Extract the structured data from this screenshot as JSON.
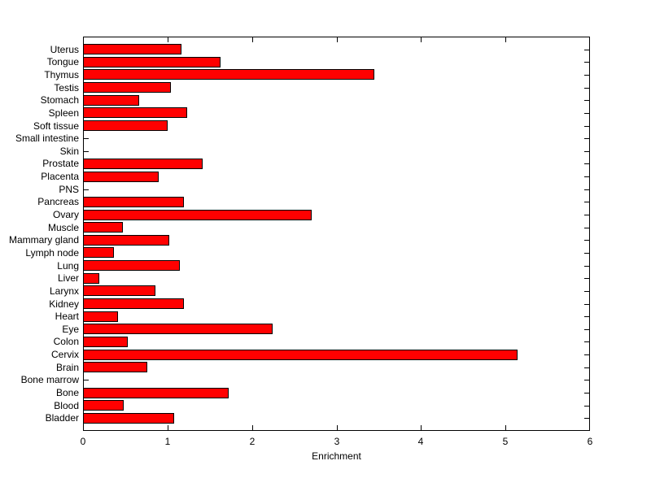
{
  "chart_data": {
    "type": "bar",
    "orientation": "horizontal",
    "xlabel": "Enrichment",
    "xlim": [
      0,
      6
    ],
    "xticks": [
      "0",
      "1",
      "2",
      "3",
      "4",
      "5",
      "6"
    ],
    "grid": false,
    "legend": null,
    "bar_color": "#ff0000",
    "bar_edge_color": "#000000",
    "background_color": "#ffffff",
    "axis_color": "#000000",
    "categories_top_to_bottom": [
      "Uterus",
      "Tongue",
      "Thymus",
      "Testis",
      "Stomach",
      "Spleen",
      "Soft tissue",
      "Small intestine",
      "Skin",
      "Prostate",
      "Placenta",
      "PNS",
      "Pancreas",
      "Ovary",
      "Muscle",
      "Mammary gland",
      "Lymph node",
      "Lung",
      "Liver",
      "Larynx",
      "Kidney",
      "Heart",
      "Eye",
      "Colon",
      "Cervix",
      "Brain",
      "Bone marrow",
      "Bone",
      "Blood",
      "Bladder"
    ],
    "values": [
      1.17,
      1.63,
      3.45,
      1.04,
      0.66,
      1.23,
      1.0,
      0,
      0,
      1.42,
      0.9,
      0,
      1.19,
      2.71,
      0.47,
      1.02,
      0.37,
      1.15,
      0.19,
      0.86,
      1.19,
      0.41,
      2.24,
      0.53,
      5.14,
      0.76,
      0,
      1.72,
      0.48,
      1.08
    ]
  }
}
